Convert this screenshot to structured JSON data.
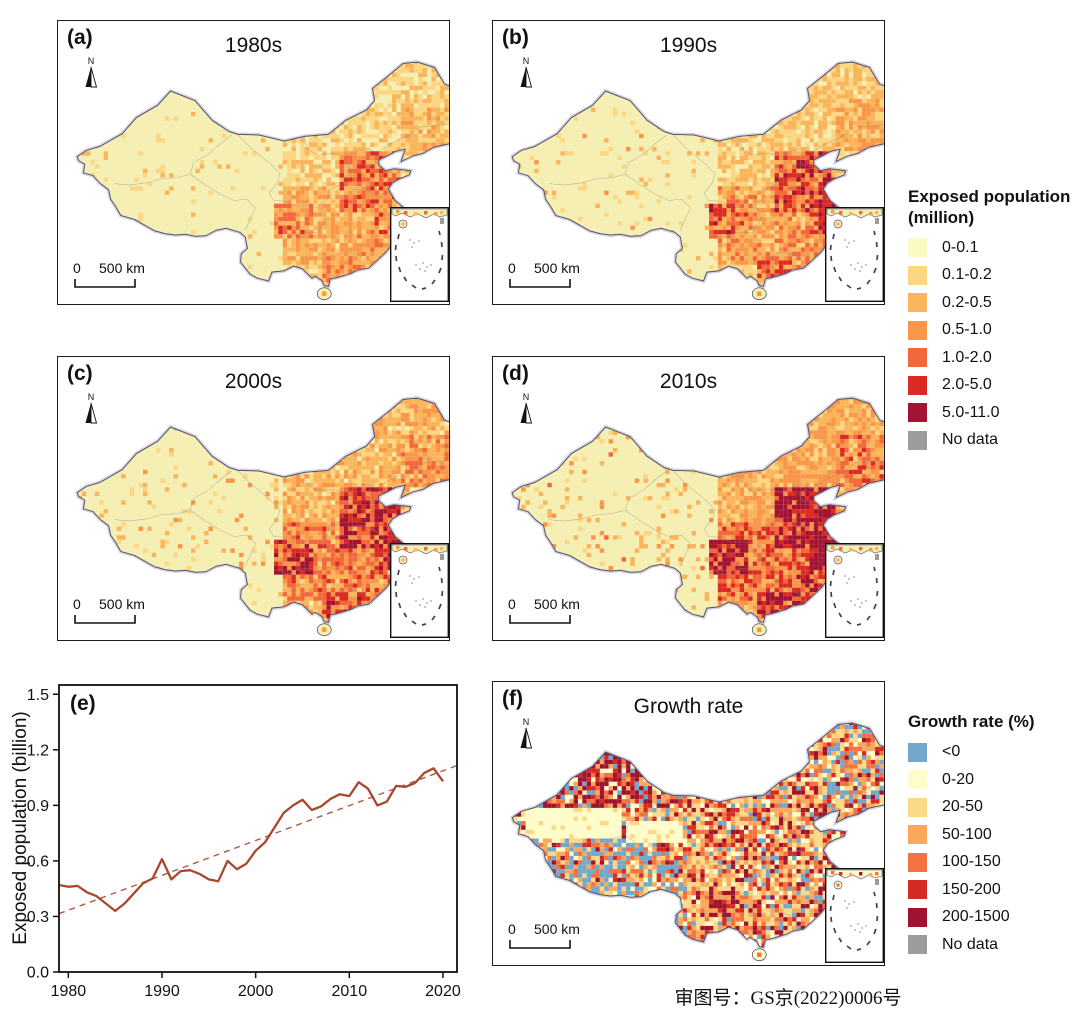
{
  "figure": {
    "caption": "审图号：GS京(2022)0006号",
    "north_label": "N",
    "scale_zero": "0",
    "scale_label": "500 km"
  },
  "map_panels": [
    {
      "id": "a",
      "letter": "(a)",
      "title": "1980s"
    },
    {
      "id": "b",
      "letter": "(b)",
      "title": "1990s"
    },
    {
      "id": "c",
      "letter": "(c)",
      "title": "2000s"
    },
    {
      "id": "d",
      "letter": "(d)",
      "title": "2010s"
    },
    {
      "id": "f",
      "letter": "(f)",
      "title": "Growth rate"
    }
  ],
  "legends": [
    {
      "title": "Exposed population",
      "title2": "(million)",
      "items": [
        {
          "label": "0-0.1",
          "color": "#fafbc4"
        },
        {
          "label": "0.1-0.2",
          "color": "#fcd682"
        },
        {
          "label": "0.2-0.5",
          "color": "#fab55c"
        },
        {
          "label": "0.5-1.0",
          "color": "#f9964a"
        },
        {
          "label": "1.0-2.0",
          "color": "#f4663c"
        },
        {
          "label": "2.0-5.0",
          "color": "#da2a23"
        },
        {
          "label": "5.0-11.0",
          "color": "#a31334"
        },
        {
          "label": "No data",
          "color": "#9c9c9c"
        }
      ]
    },
    {
      "title": "Growth rate (%)",
      "title2": "",
      "items": [
        {
          "label": "<0",
          "color": "#73a8cd"
        },
        {
          "label": "0-20",
          "color": "#fdfcca"
        },
        {
          "label": "20-50",
          "color": "#fbd988"
        },
        {
          "label": "50-100",
          "color": "#f9a85c"
        },
        {
          "label": "100-150",
          "color": "#f47142"
        },
        {
          "label": "150-200",
          "color": "#d62b24"
        },
        {
          "label": "200-1500",
          "color": "#9f1330"
        },
        {
          "label": "No data",
          "color": "#9c9c9c"
        }
      ]
    }
  ],
  "chart_data": {
    "type": "line",
    "panel_letter": "(e)",
    "title": "",
    "xlabel": "",
    "ylabel": "Exposed population (billion)",
    "xlim": [
      1979,
      2021.5
    ],
    "ylim": [
      0,
      1.55
    ],
    "xticks": [
      1980,
      1990,
      2000,
      2010,
      2020
    ],
    "yticks": [
      "0.0",
      "0.3",
      "0.6",
      "0.9",
      "1.2",
      "1.5"
    ],
    "grid": false,
    "legend_position": "none",
    "series": [
      {
        "name": "Exposed population",
        "color": "#a6492f",
        "style": "solid",
        "x": [
          1979,
          1980,
          1981,
          1982,
          1983,
          1984,
          1985,
          1986,
          1987,
          1988,
          1989,
          1990,
          1991,
          1992,
          1993,
          1994,
          1995,
          1996,
          1997,
          1998,
          1999,
          2000,
          2001,
          2002,
          2003,
          2004,
          2005,
          2006,
          2007,
          2008,
          2009,
          2010,
          2011,
          2012,
          2013,
          2014,
          2015,
          2016,
          2017,
          2018,
          2019,
          2020
        ],
        "values": [
          0.47,
          0.46,
          0.465,
          0.43,
          0.41,
          0.37,
          0.33,
          0.37,
          0.425,
          0.48,
          0.505,
          0.61,
          0.5,
          0.545,
          0.55,
          0.53,
          0.5,
          0.49,
          0.6,
          0.555,
          0.585,
          0.655,
          0.7,
          0.78,
          0.86,
          0.9,
          0.93,
          0.875,
          0.895,
          0.935,
          0.96,
          0.95,
          1.025,
          0.99,
          0.9,
          0.92,
          1.005,
          1.0,
          1.02,
          1.075,
          1.1,
          1.03
        ]
      }
    ],
    "trend": {
      "name": "Linear trend",
      "color": "#ad5a42",
      "style": "dashed",
      "x": [
        1979,
        2021.5
      ],
      "values": [
        0.315,
        1.115
      ]
    }
  }
}
